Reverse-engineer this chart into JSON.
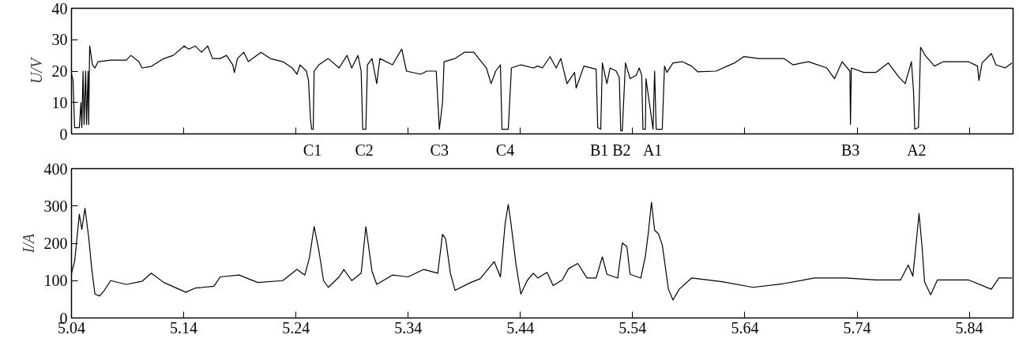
{
  "chart_data": [
    {
      "type": "line",
      "ylabel": "U/V",
      "xlim": [
        5.04,
        5.879
      ],
      "xticks": [
        5.04,
        5.14,
        5.24,
        5.34,
        5.44,
        5.54,
        5.64,
        5.74,
        5.84
      ],
      "ylim": [
        0,
        40
      ],
      "yticks": [
        0,
        10,
        20,
        30,
        40
      ],
      "tick_labels": "y",
      "series": [
        {
          "color": "#000000",
          "x": [
            5.04,
            5.0414,
            5.0428,
            5.047,
            5.0484,
            5.0492,
            5.0503,
            5.0512,
            5.0526,
            5.0534,
            5.0548,
            5.0553,
            5.0562,
            5.0587,
            5.0609,
            5.0637,
            5.0749,
            5.0888,
            5.093,
            5.1,
            5.1028,
            5.1111,
            5.1223,
            5.1307,
            5.1404,
            5.1446,
            5.1502,
            5.1558,
            5.1614,
            5.1656,
            5.1725,
            5.1781,
            5.1837,
            5.1851,
            5.1879,
            5.1935,
            5.1976,
            5.2088,
            5.2172,
            5.2283,
            5.2367,
            5.2409,
            5.2437,
            5.2493,
            5.2512,
            5.2529,
            5.254,
            5.2554,
            5.2562,
            5.2604,
            5.2688,
            5.2785,
            5.2855,
            5.2897,
            5.2953,
            5.2981,
            5.2995,
            5.3023,
            5.3037,
            5.3078,
            5.312,
            5.3148,
            5.326,
            5.3343,
            5.3385,
            5.3511,
            5.3567,
            5.365,
            5.3678,
            5.3706,
            5.372,
            5.3818,
            5.3901,
            5.3985,
            5.4097,
            5.4139,
            5.418,
            5.4222,
            5.4236,
            5.4292,
            5.432,
            5.4404,
            5.4515,
            5.4555,
            5.4596,
            5.4664,
            5.4719,
            5.476,
            5.4815,
            5.4883,
            5.4897,
            5.4966,
            5.5075,
            5.5089,
            5.5116,
            5.513,
            5.5171,
            5.5199,
            5.5253,
            5.5281,
            5.5294,
            5.5308,
            5.5336,
            5.5377,
            5.5431,
            5.5459,
            5.5481,
            5.5492,
            5.5514,
            5.5519,
            5.5582,
            5.5596,
            5.561,
            5.5664,
            5.5684,
            5.5705,
            5.576,
            5.5842,
            5.5925,
            5.5979,
            5.6144,
            5.6308,
            5.639,
            5.6527,
            5.6747,
            5.6829,
            5.6966,
            5.713,
            5.7199,
            5.7267,
            5.7336,
            5.7341,
            5.7349,
            5.7459,
            5.7569,
            5.7678,
            5.7774,
            5.7829,
            5.7884,
            5.7903,
            5.7914,
            5.7947,
            5.7966,
            5.8007,
            5.8089,
            5.8171,
            5.8391,
            5.8473,
            5.8486,
            5.8514,
            5.8596,
            5.8637,
            5.8719,
            5.878
          ],
          "values": [
            19,
            17,
            2,
            2,
            10,
            2,
            20,
            3,
            20,
            3,
            20,
            3,
            28,
            22,
            21,
            23,
            23.5,
            23.5,
            25,
            23,
            21,
            21.5,
            24,
            25,
            28,
            27,
            28,
            26,
            28,
            24,
            24,
            25,
            22,
            19.5,
            24,
            26,
            23,
            26,
            24,
            23,
            21,
            19,
            22,
            20,
            17,
            5,
            1.5,
            1.5,
            20,
            22,
            24,
            21,
            25,
            21,
            25,
            20,
            1.5,
            1.5,
            22,
            24,
            16,
            24,
            22,
            27,
            20,
            19,
            20,
            20,
            1.5,
            10,
            23,
            24,
            26,
            26,
            21,
            16,
            20,
            22,
            1.5,
            1.5,
            21,
            22,
            21,
            21.6,
            21,
            24.6,
            21,
            24,
            16,
            19.6,
            14.6,
            21.6,
            20.6,
            2,
            1.5,
            22.6,
            16,
            21,
            20,
            18,
            1,
            1,
            22.6,
            17.6,
            18.6,
            21,
            18.6,
            1.5,
            1.5,
            17.6,
            1.5,
            20,
            1.5,
            1.5,
            21.6,
            19.6,
            22.6,
            23,
            21.6,
            19.8,
            20,
            22.6,
            24.6,
            24,
            24,
            22,
            23,
            21,
            17.6,
            23,
            20,
            3,
            21,
            19.6,
            19.6,
            22.6,
            18,
            16,
            23,
            13.6,
            1.5,
            2,
            27.6,
            25,
            21.6,
            23,
            23,
            21.6,
            17,
            22.6,
            25.6,
            22,
            21,
            22.6
          ]
        }
      ],
      "annotations": [
        "C1",
        "C2",
        "C3",
        "C4",
        "B1",
        "B2",
        "A1",
        "B3",
        "A2"
      ]
    },
    {
      "type": "line",
      "ylabel": "I/A",
      "xlim": [
        5.04,
        5.879
      ],
      "xticks": [
        5.04,
        5.14,
        5.24,
        5.34,
        5.44,
        5.54,
        5.64,
        5.74,
        5.84
      ],
      "ylim": [
        0,
        400
      ],
      "yticks": [
        0,
        100,
        200,
        300,
        400
      ],
      "series": [
        {
          "color": "#000000",
          "x": [
            5.04,
            5.0428,
            5.047,
            5.0492,
            5.052,
            5.0553,
            5.0581,
            5.0609,
            5.0651,
            5.0693,
            5.0749,
            5.0888,
            5.1028,
            5.1111,
            5.1223,
            5.1418,
            5.1502,
            5.1669,
            5.1725,
            5.1893,
            5.206,
            5.2283,
            5.2409,
            5.2479,
            5.252,
            5.2562,
            5.2604,
            5.2646,
            5.2688,
            5.2785,
            5.2827,
            5.2897,
            5.2981,
            5.3023,
            5.3078,
            5.312,
            5.326,
            5.3399,
            5.3539,
            5.3664,
            5.3706,
            5.3734,
            5.3776,
            5.3818,
            5.3957,
            5.4041,
            5.4167,
            5.4222,
            5.4264,
            5.4292,
            5.4314,
            5.4362,
            5.4404,
            5.446,
            5.4515,
            5.4555,
            5.4637,
            5.4692,
            5.4774,
            5.4829,
            5.4911,
            5.4993,
            5.5075,
            5.513,
            5.5171,
            5.5267,
            5.5308,
            5.5349,
            5.5377,
            5.5473,
            5.5514,
            5.5541,
            5.5568,
            5.5596,
            5.5629,
            5.5664,
            5.5719,
            5.576,
            5.5815,
            5.5925,
            5.6199,
            5.6473,
            5.6747,
            5.7021,
            5.7295,
            5.7569,
            5.7788,
            5.7856,
            5.7897,
            5.793,
            5.7952,
            5.7979,
            5.8001,
            5.8056,
            5.8116,
            5.8391,
            5.8596,
            5.8664,
            5.878
          ],
          "values": [
            120,
            151,
            278,
            237,
            294,
            217,
            130,
            64,
            59,
            74,
            100,
            90,
            98,
            120,
            95,
            69,
            80,
            85,
            110,
            115,
            95,
            100,
            130,
            115,
            161,
            245,
            181,
            100,
            82,
            110,
            130,
            100,
            120,
            245,
            125,
            90,
            115,
            110,
            130,
            120,
            224,
            212,
            120,
            74,
            95,
            105,
            151,
            110,
            253,
            304,
            258,
            141,
            64,
            100,
            120,
            107,
            122,
            87,
            102,
            132,
            146,
            107,
            107,
            164,
            117,
            107,
            201,
            191,
            117,
            107,
            166,
            231,
            310,
            235,
            226,
            196,
            77,
            48,
            77,
            107,
            97,
            82,
            92,
            107,
            107,
            102,
            102,
            142,
            112,
            211,
            280,
            191,
            97,
            62,
            102,
            102,
            77,
            107,
            107
          ]
        }
      ]
    }
  ]
}
